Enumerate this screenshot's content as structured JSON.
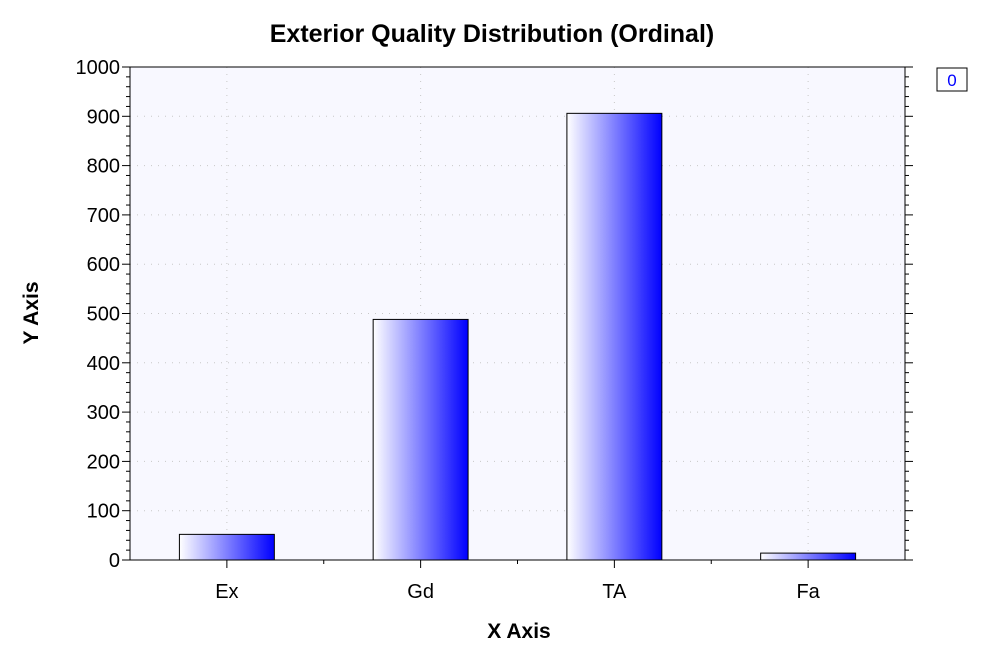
{
  "chart_data": {
    "type": "bar",
    "title": "Exterior Quality Distribution (Ordinal)",
    "xlabel": "X Axis",
    "ylabel": "Y Axis",
    "categories": [
      "Ex",
      "Gd",
      "TA",
      "Fa"
    ],
    "series": [
      {
        "name": "0",
        "values": [
          52,
          488,
          906,
          14
        ]
      }
    ],
    "ylim": [
      0,
      1000
    ],
    "yticks": [
      0,
      100,
      200,
      300,
      400,
      500,
      600,
      700,
      800,
      900,
      1000
    ],
    "ytick_labels": [
      "0",
      "100",
      "200",
      "300",
      "400",
      "500",
      "600",
      "700",
      "800",
      "900",
      "1000"
    ],
    "grid": true,
    "legend_position": "top-right",
    "colors": {
      "bar_light": "#ffffff",
      "bar_dark": "#0000ff",
      "plot_background": "#f8f8ff",
      "legend_text": "#0000ff",
      "grid": "#c8c8c8"
    }
  }
}
